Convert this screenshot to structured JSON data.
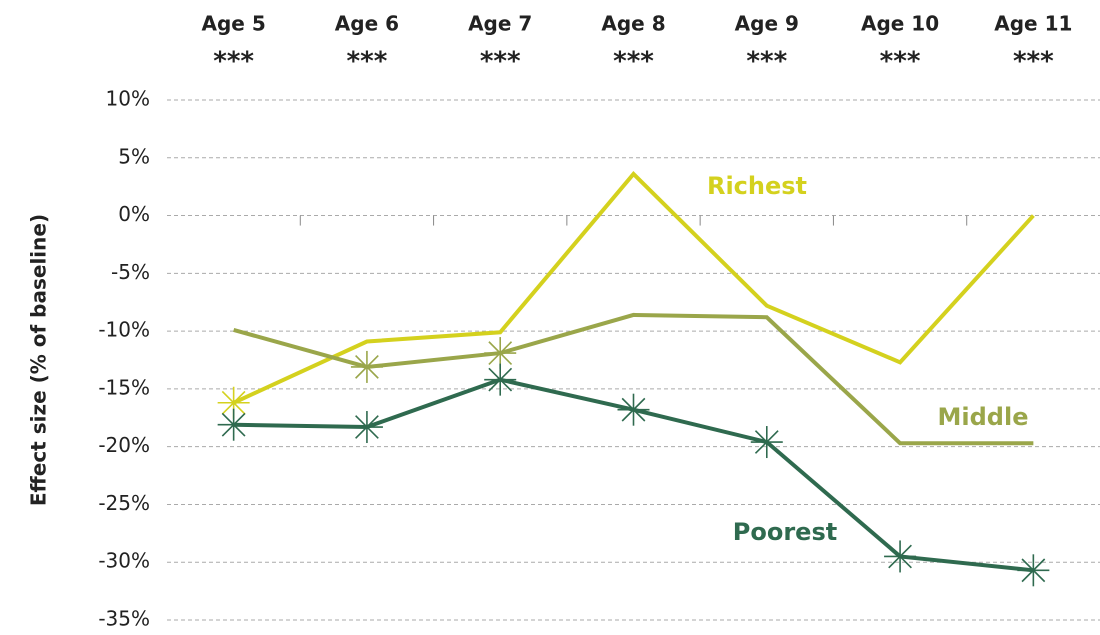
{
  "chart_data": {
    "type": "line",
    "y_axis_label": "Effect size (% of baseline)",
    "categories": [
      "Age 5",
      "Age 6",
      "Age 7",
      "Age 8",
      "Age 9",
      "Age 10",
      "Age 11"
    ],
    "category_annotations": [
      "***",
      "***",
      "***",
      "***",
      "***",
      "***",
      "***"
    ],
    "series": [
      {
        "name": "Richest",
        "color": "#d4d11e",
        "values": [
          -16.2,
          -10.9,
          -10.1,
          3.6,
          -7.8,
          -12.7,
          0.0
        ],
        "markers": [
          true,
          false,
          false,
          false,
          false,
          false,
          false
        ]
      },
      {
        "name": "Middle",
        "color": "#9aa64a",
        "values": [
          -9.9,
          -13.1,
          -11.9,
          -8.6,
          -8.8,
          -19.7,
          -19.7
        ],
        "markers": [
          false,
          true,
          true,
          false,
          false,
          false,
          false
        ]
      },
      {
        "name": "Poorest",
        "color": "#2f6a4f",
        "values": [
          -18.1,
          -18.3,
          -14.2,
          -16.8,
          -19.6,
          -29.5,
          -30.7
        ],
        "markers": [
          true,
          true,
          true,
          true,
          true,
          true,
          true
        ]
      }
    ],
    "ylim": [
      -35,
      10
    ],
    "yticks": [
      {
        "value": 10,
        "label": "10%"
      },
      {
        "value": 5,
        "label": "5%"
      },
      {
        "value": 0,
        "label": "0%"
      },
      {
        "value": -5,
        "label": "-5%"
      },
      {
        "value": -10,
        "label": "-10%"
      },
      {
        "value": -15,
        "label": "-15%"
      },
      {
        "value": -20,
        "label": "-20%"
      },
      {
        "value": -25,
        "label": "-25%"
      },
      {
        "value": -30,
        "label": "-30%"
      },
      {
        "value": -35,
        "label": "-35%"
      }
    ],
    "grid": true
  }
}
